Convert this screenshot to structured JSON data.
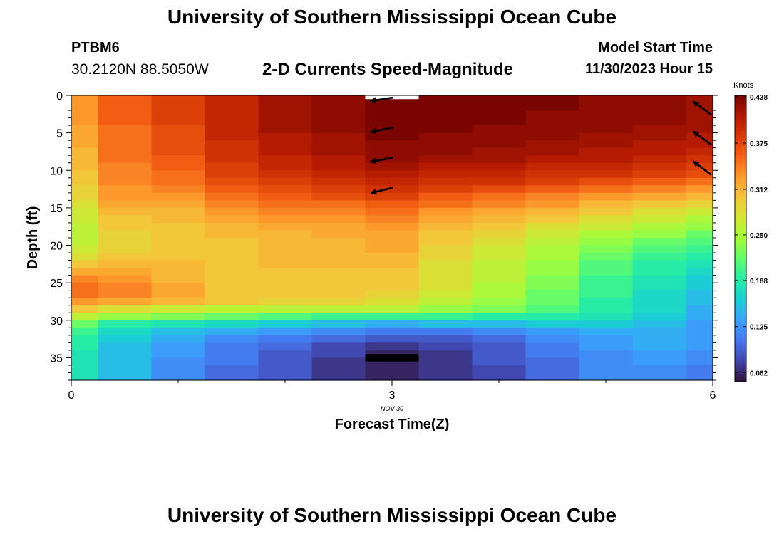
{
  "header": {
    "title": "University of Southern Mississippi Ocean Cube",
    "station": "PTBM6",
    "coordinates": "30.2120N  88.5050W",
    "subtitle": "2-D Currents Speed-Magnitude",
    "model_start_label": "Model Start Time",
    "model_start_value": "11/30/2023 Hour 15"
  },
  "footer": {
    "title": "University of Southern Mississippi Ocean Cube"
  },
  "colorbar": {
    "title": "Knots",
    "ticks": [
      "0.438",
      "0.375",
      "0.312",
      "0.250",
      "0.188",
      "0.125",
      "0.062"
    ]
  },
  "chart_data": {
    "type": "heatmap",
    "xlabel": "Forecast Time(Z)",
    "ylabel": "Depth (ft)",
    "x_ticks": [
      "0",
      "3",
      "6"
    ],
    "x_date_label": "NOV  30",
    "y_ticks": [
      "0",
      "5",
      "10",
      "15",
      "20",
      "25",
      "30",
      "35"
    ],
    "xlim": [
      0,
      6
    ],
    "ylim": [
      0,
      38
    ],
    "y_inverted": true,
    "color_range": [
      0.05,
      0.44
    ],
    "time_columns": [
      0.1,
      0.5,
      1.0,
      1.5,
      2.0,
      2.5,
      3.0,
      3.5,
      4.0,
      4.5,
      5.0,
      5.5,
      5.9
    ],
    "column_edges": [
      0,
      0.25,
      0.75,
      1.25,
      1.75,
      2.25,
      2.75,
      3.25,
      3.75,
      4.25,
      4.75,
      5.25,
      5.75,
      6
    ],
    "depth_rows": [
      0,
      1,
      2,
      3,
      4,
      5,
      6,
      7,
      8,
      9,
      10,
      11,
      12,
      13,
      14,
      15,
      16,
      17,
      18,
      19,
      20,
      21,
      22,
      23,
      24,
      25,
      26,
      27,
      28,
      29,
      30,
      31,
      32,
      33,
      34,
      35,
      36,
      37
    ],
    "speed_knots": [
      [
        0.33,
        0.36,
        0.38,
        0.4,
        0.42,
        0.43,
        0.44,
        0.44,
        0.44,
        0.44,
        0.43,
        0.43,
        0.42
      ],
      [
        0.33,
        0.36,
        0.38,
        0.4,
        0.42,
        0.43,
        0.44,
        0.44,
        0.44,
        0.44,
        0.43,
        0.43,
        0.42
      ],
      [
        0.33,
        0.36,
        0.38,
        0.4,
        0.42,
        0.43,
        0.44,
        0.44,
        0.44,
        0.43,
        0.43,
        0.43,
        0.42
      ],
      [
        0.33,
        0.36,
        0.38,
        0.4,
        0.42,
        0.43,
        0.44,
        0.44,
        0.44,
        0.43,
        0.43,
        0.43,
        0.42
      ],
      [
        0.32,
        0.35,
        0.37,
        0.4,
        0.42,
        0.43,
        0.44,
        0.44,
        0.43,
        0.43,
        0.43,
        0.42,
        0.42
      ],
      [
        0.32,
        0.35,
        0.37,
        0.4,
        0.41,
        0.42,
        0.44,
        0.43,
        0.43,
        0.43,
        0.42,
        0.42,
        0.41
      ],
      [
        0.32,
        0.35,
        0.37,
        0.39,
        0.41,
        0.42,
        0.43,
        0.43,
        0.43,
        0.42,
        0.42,
        0.41,
        0.41
      ],
      [
        0.31,
        0.35,
        0.37,
        0.39,
        0.41,
        0.42,
        0.43,
        0.43,
        0.42,
        0.42,
        0.41,
        0.41,
        0.4
      ],
      [
        0.31,
        0.35,
        0.36,
        0.39,
        0.4,
        0.41,
        0.43,
        0.42,
        0.42,
        0.41,
        0.41,
        0.4,
        0.39
      ],
      [
        0.31,
        0.34,
        0.36,
        0.38,
        0.4,
        0.41,
        0.42,
        0.41,
        0.41,
        0.4,
        0.4,
        0.39,
        0.38
      ],
      [
        0.3,
        0.34,
        0.35,
        0.38,
        0.39,
        0.4,
        0.41,
        0.4,
        0.4,
        0.39,
        0.39,
        0.38,
        0.37
      ],
      [
        0.3,
        0.34,
        0.35,
        0.37,
        0.38,
        0.39,
        0.4,
        0.39,
        0.39,
        0.38,
        0.37,
        0.36,
        0.35
      ],
      [
        0.29,
        0.33,
        0.34,
        0.36,
        0.37,
        0.38,
        0.39,
        0.38,
        0.37,
        0.36,
        0.35,
        0.34,
        0.33
      ],
      [
        0.29,
        0.33,
        0.33,
        0.35,
        0.36,
        0.37,
        0.38,
        0.36,
        0.35,
        0.34,
        0.33,
        0.32,
        0.31
      ],
      [
        0.28,
        0.32,
        0.32,
        0.34,
        0.35,
        0.35,
        0.36,
        0.35,
        0.34,
        0.33,
        0.31,
        0.3,
        0.29
      ],
      [
        0.27,
        0.31,
        0.31,
        0.33,
        0.34,
        0.34,
        0.35,
        0.33,
        0.32,
        0.31,
        0.3,
        0.28,
        0.27
      ],
      [
        0.27,
        0.3,
        0.31,
        0.32,
        0.33,
        0.33,
        0.34,
        0.32,
        0.31,
        0.3,
        0.28,
        0.27,
        0.25
      ],
      [
        0.26,
        0.3,
        0.3,
        0.31,
        0.32,
        0.32,
        0.33,
        0.31,
        0.3,
        0.28,
        0.27,
        0.25,
        0.24
      ],
      [
        0.26,
        0.29,
        0.3,
        0.31,
        0.31,
        0.32,
        0.32,
        0.3,
        0.29,
        0.27,
        0.25,
        0.24,
        0.22
      ],
      [
        0.26,
        0.29,
        0.3,
        0.3,
        0.31,
        0.31,
        0.32,
        0.3,
        0.28,
        0.26,
        0.24,
        0.22,
        0.21
      ],
      [
        0.27,
        0.29,
        0.3,
        0.3,
        0.31,
        0.31,
        0.32,
        0.29,
        0.27,
        0.25,
        0.23,
        0.21,
        0.2
      ],
      [
        0.28,
        0.3,
        0.3,
        0.3,
        0.31,
        0.31,
        0.31,
        0.29,
        0.27,
        0.25,
        0.22,
        0.2,
        0.19
      ],
      [
        0.3,
        0.31,
        0.31,
        0.3,
        0.31,
        0.31,
        0.31,
        0.28,
        0.26,
        0.24,
        0.21,
        0.19,
        0.18
      ],
      [
        0.32,
        0.32,
        0.31,
        0.3,
        0.3,
        0.3,
        0.3,
        0.28,
        0.26,
        0.24,
        0.21,
        0.19,
        0.17
      ],
      [
        0.34,
        0.33,
        0.31,
        0.3,
        0.3,
        0.3,
        0.3,
        0.28,
        0.26,
        0.23,
        0.2,
        0.18,
        0.16
      ],
      [
        0.35,
        0.34,
        0.32,
        0.3,
        0.3,
        0.3,
        0.3,
        0.28,
        0.25,
        0.23,
        0.2,
        0.18,
        0.16
      ],
      [
        0.35,
        0.34,
        0.32,
        0.3,
        0.3,
        0.3,
        0.29,
        0.27,
        0.25,
        0.22,
        0.2,
        0.17,
        0.15
      ],
      [
        0.33,
        0.32,
        0.31,
        0.3,
        0.29,
        0.29,
        0.28,
        0.26,
        0.24,
        0.22,
        0.19,
        0.17,
        0.15
      ],
      [
        0.3,
        0.28,
        0.27,
        0.26,
        0.26,
        0.26,
        0.26,
        0.24,
        0.23,
        0.21,
        0.19,
        0.17,
        0.14
      ],
      [
        0.26,
        0.24,
        0.23,
        0.22,
        0.21,
        0.2,
        0.2,
        0.2,
        0.19,
        0.19,
        0.18,
        0.16,
        0.14
      ],
      [
        0.22,
        0.19,
        0.18,
        0.17,
        0.16,
        0.15,
        0.14,
        0.15,
        0.15,
        0.16,
        0.16,
        0.15,
        0.13
      ],
      [
        0.2,
        0.17,
        0.15,
        0.14,
        0.13,
        0.12,
        0.11,
        0.11,
        0.12,
        0.13,
        0.14,
        0.14,
        0.13
      ],
      [
        0.19,
        0.16,
        0.14,
        0.12,
        0.11,
        0.1,
        0.09,
        0.09,
        0.1,
        0.12,
        0.13,
        0.14,
        0.13
      ],
      [
        0.19,
        0.15,
        0.13,
        0.11,
        0.1,
        0.08,
        0.07,
        0.08,
        0.09,
        0.11,
        0.13,
        0.14,
        0.13
      ],
      [
        0.18,
        0.15,
        0.13,
        0.11,
        0.09,
        0.08,
        0.06,
        0.07,
        0.09,
        0.11,
        0.12,
        0.13,
        0.12
      ],
      [
        0.18,
        0.15,
        0.12,
        0.11,
        0.09,
        0.07,
        0.06,
        0.07,
        0.09,
        0.1,
        0.12,
        0.13,
        0.12
      ],
      [
        0.18,
        0.15,
        0.12,
        0.1,
        0.09,
        0.07,
        0.06,
        0.07,
        0.08,
        0.1,
        0.12,
        0.12,
        0.11
      ],
      [
        0.18,
        0.15,
        0.12,
        0.1,
        0.09,
        0.07,
        0.06,
        0.07,
        0.08,
        0.1,
        0.12,
        0.12,
        0.11
      ]
    ],
    "direction_arrows": [
      {
        "time": 3.0,
        "depth": 0.3,
        "dx": -1.0,
        "dy": 0.15
      },
      {
        "time": 3.0,
        "depth": 4.3,
        "dx": -1.0,
        "dy": 0.2
      },
      {
        "time": 3.0,
        "depth": 8.3,
        "dx": -1.0,
        "dy": 0.2
      },
      {
        "time": 3.0,
        "depth": 12.3,
        "dx": -1.0,
        "dy": 0.25
      },
      {
        "time": 6.0,
        "depth": 2.6,
        "dx": -0.8,
        "dy": -0.6
      },
      {
        "time": 6.0,
        "depth": 6.6,
        "dx": -0.8,
        "dy": -0.6
      },
      {
        "time": 6.0,
        "depth": 10.6,
        "dx": -0.8,
        "dy": -0.6
      }
    ],
    "highlight_bars": [
      {
        "time_start": 2.75,
        "time_end": 3.25,
        "depth_start": 0,
        "depth_end": 0.5,
        "color": "#ffffff"
      },
      {
        "time_start": 2.75,
        "time_end": 3.25,
        "depth_start": 34.5,
        "depth_end": 35.5,
        "color": "#000000"
      }
    ],
    "colormap": [
      "#30123b",
      "#4145ab",
      "#4675ed",
      "#39a2fc",
      "#1bcfd4",
      "#24eca6",
      "#61fc6c",
      "#a4fc3b",
      "#d1e834",
      "#f3c63a",
      "#fe9b2d",
      "#f36315",
      "#d93806",
      "#b11901",
      "#7a0402"
    ]
  }
}
